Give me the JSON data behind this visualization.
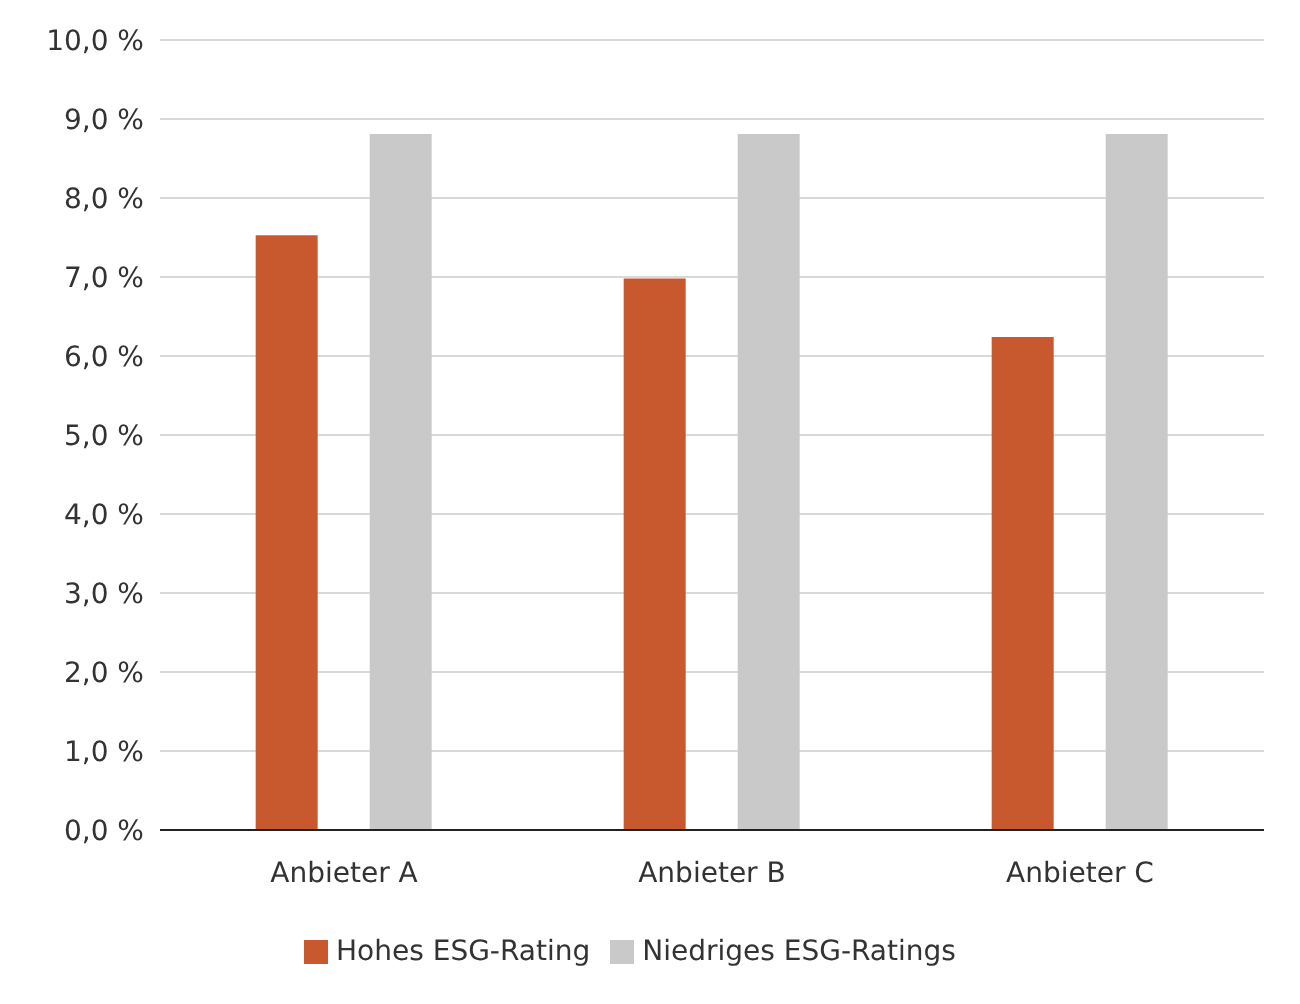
{
  "chart_data": {
    "type": "bar",
    "categories": [
      "Anbieter A",
      "Anbieter B",
      "Anbieter C"
    ],
    "series": [
      {
        "name": "Hohes ESG-Rating",
        "color": "#c8582e",
        "values": [
          7.53,
          6.98,
          6.24
        ]
      },
      {
        "name": "Niedriges ESG-Ratings",
        "color": "#c9c9c9",
        "values": [
          8.81,
          8.81,
          8.81
        ]
      }
    ],
    "ylim": [
      0,
      10
    ],
    "yticks": [
      {
        "value": 0,
        "label": "0,0 %"
      },
      {
        "value": 1,
        "label": "1,0 %"
      },
      {
        "value": 2,
        "label": "2,0 %"
      },
      {
        "value": 3,
        "label": "3,0 %"
      },
      {
        "value": 4,
        "label": "4,0 %"
      },
      {
        "value": 5,
        "label": "5,0 %"
      },
      {
        "value": 6,
        "label": "6,0 %"
      },
      {
        "value": 7,
        "label": "7,0 %"
      },
      {
        "value": 8,
        "label": "8,0 %"
      },
      {
        "value": 9,
        "label": "9,0 %"
      },
      {
        "value": 10,
        "label": "10,0 %"
      }
    ],
    "grid": "y",
    "legend": "bottom"
  }
}
